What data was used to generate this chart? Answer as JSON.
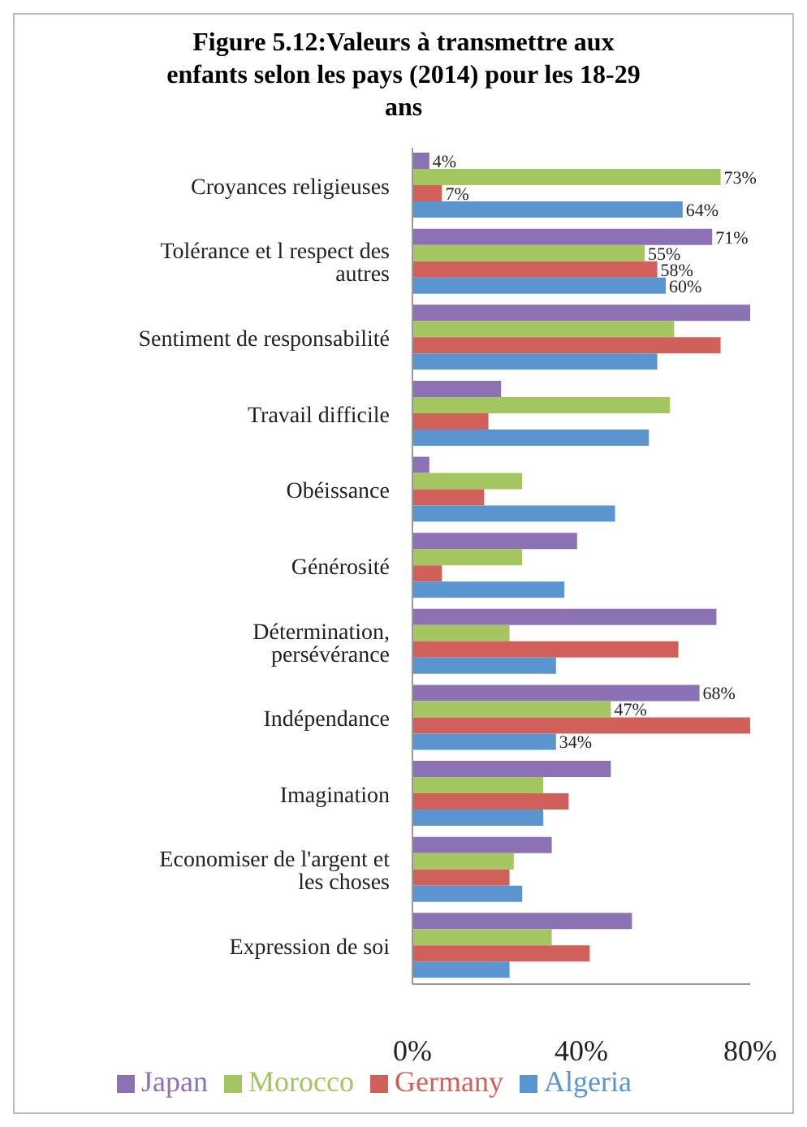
{
  "chart_data": {
    "type": "bar",
    "orientation": "horizontal",
    "title": "Figure 5.12:Valeurs à transmettre aux enfants selon les pays (2014) pour les 18-29 ans",
    "categories": [
      "Croyances religieuses",
      "Tolérance et l respect des autres",
      "Sentiment de responsabilité",
      "Travail difficile",
      "Obéissance",
      "Générosité",
      "Détermination, persévérance",
      "Indépendance",
      "Imagination ",
      "Economiser de l'argent et les choses",
      "Expression de soi"
    ],
    "series": [
      {
        "name": "Japan",
        "color": "#8c72b4",
        "values": [
          4,
          71,
          80,
          21,
          4,
          39,
          72,
          68,
          47,
          33,
          52
        ],
        "value_labels": [
          "4%",
          "71%",
          null,
          null,
          null,
          null,
          null,
          "68%",
          null,
          null,
          null
        ]
      },
      {
        "name": "Morocco",
        "color": "#a4c661",
        "values": [
          73,
          55,
          62,
          61,
          26,
          26,
          23,
          47,
          31,
          24,
          33
        ],
        "value_labels": [
          "73%",
          "55%",
          null,
          null,
          null,
          null,
          null,
          "47%",
          null,
          null,
          null
        ]
      },
      {
        "name": "Germany",
        "color": "#d2605a",
        "values": [
          7,
          58,
          73,
          18,
          17,
          7,
          63,
          80,
          37,
          23,
          42
        ],
        "value_labels": [
          "7%",
          "58%",
          null,
          null,
          null,
          null,
          null,
          null,
          null,
          null,
          null
        ]
      },
      {
        "name": "Algeria",
        "color": "#5b95cf",
        "values": [
          64,
          60,
          58,
          56,
          48,
          36,
          34,
          34,
          31,
          26,
          23
        ],
        "value_labels": [
          "64%",
          "60%",
          null,
          null,
          null,
          null,
          null,
          "34%",
          null,
          null,
          null
        ]
      }
    ],
    "xlim": [
      0,
      80
    ],
    "xticks": [
      {
        "value": 0,
        "label": "0%"
      },
      {
        "value": 40,
        "label": "40%"
      },
      {
        "value": 80,
        "label": "80%"
      }
    ],
    "grid": false,
    "legend": "bottom"
  }
}
